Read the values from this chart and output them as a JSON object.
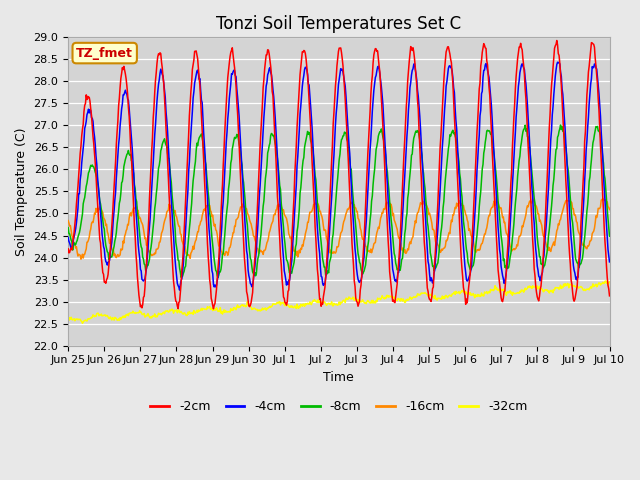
{
  "title": "Tonzi Soil Temperatures Set C",
  "xlabel": "Time",
  "ylabel": "Soil Temperature (C)",
  "annotation": "TZ_fmet",
  "ylim": [
    22.0,
    29.0
  ],
  "yticks": [
    22.0,
    22.5,
    23.0,
    23.5,
    24.0,
    24.5,
    25.0,
    25.5,
    26.0,
    26.5,
    27.0,
    27.5,
    28.0,
    28.5,
    29.0
  ],
  "xtick_labels": [
    "Jun 25",
    "Jun 26",
    "Jun 27",
    "Jun 28",
    "Jun 29",
    "Jun 30",
    "Jul 1",
    "Jul 2",
    "Jul 3",
    "Jul 4",
    "Jul 5",
    "Jul 6",
    "Jul 7",
    "Jul 8",
    "Jul 9",
    "Jul 10"
  ],
  "legend_labels": [
    "-2cm",
    "-4cm",
    "-8cm",
    "-16cm",
    "-32cm"
  ],
  "line_colors": [
    "#ff0000",
    "#0000ff",
    "#00bb00",
    "#ff8800",
    "#ffff00"
  ],
  "fig_bg_color": "#e8e8e8",
  "plot_bg_color": "#d4d4d4",
  "annotation_bg": "#ffffcc",
  "annotation_border_color": "#cc8800",
  "annotation_text_color": "#cc0000",
  "title_fontsize": 12,
  "axis_label_fontsize": 9,
  "tick_fontsize": 8,
  "legend_fontsize": 9
}
